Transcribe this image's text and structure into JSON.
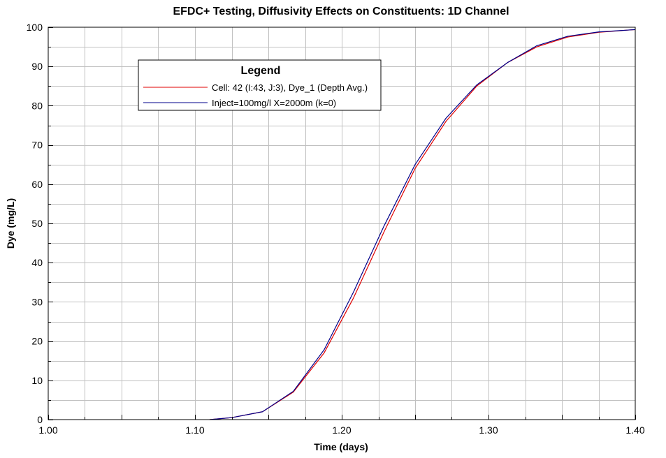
{
  "chart_data": {
    "type": "line",
    "title": "EFDC+ Testing, Diffusivity Effects on Constituents: 1D Channel",
    "xlabel": "Time (days)",
    "ylabel": "Dye (mg/L)",
    "xlim": [
      1.0,
      1.4
    ],
    "ylim": [
      0,
      100
    ],
    "x_ticks": [
      "1.00",
      "1.10",
      "1.20",
      "1.30",
      "1.40"
    ],
    "y_ticks": [
      "0",
      "10",
      "20",
      "30",
      "40",
      "50",
      "60",
      "70",
      "80",
      "90",
      "100"
    ],
    "grid": true,
    "legend": {
      "title": "Legend",
      "placement": "top-left"
    },
    "series": [
      {
        "name": "Cell: 42 (I:43, J:3), Dye_1 (Depth Avg.)",
        "color": "#e00000",
        "x": [
          1.11,
          1.125,
          1.146,
          1.167,
          1.188,
          1.208,
          1.229,
          1.25,
          1.271,
          1.292,
          1.313,
          1.333,
          1.354,
          1.375,
          1.396,
          1.4
        ],
        "y": [
          0,
          0.5,
          2,
          7,
          17,
          31,
          48,
          64,
          76,
          85,
          91,
          95,
          97.5,
          98.7,
          99.3,
          99.4
        ]
      },
      {
        "name": "Inject=100mg/l X=2000m (k=0)",
        "color": "#00008b",
        "x": [
          1.11,
          1.125,
          1.146,
          1.167,
          1.188,
          1.208,
          1.229,
          1.25,
          1.271,
          1.292,
          1.313,
          1.333,
          1.354,
          1.375,
          1.396,
          1.4
        ],
        "y": [
          0,
          0.5,
          2,
          7.2,
          17.8,
          32.5,
          49.5,
          65,
          76.8,
          85.3,
          91,
          95.3,
          97.7,
          98.8,
          99.3,
          99.4
        ]
      }
    ]
  }
}
